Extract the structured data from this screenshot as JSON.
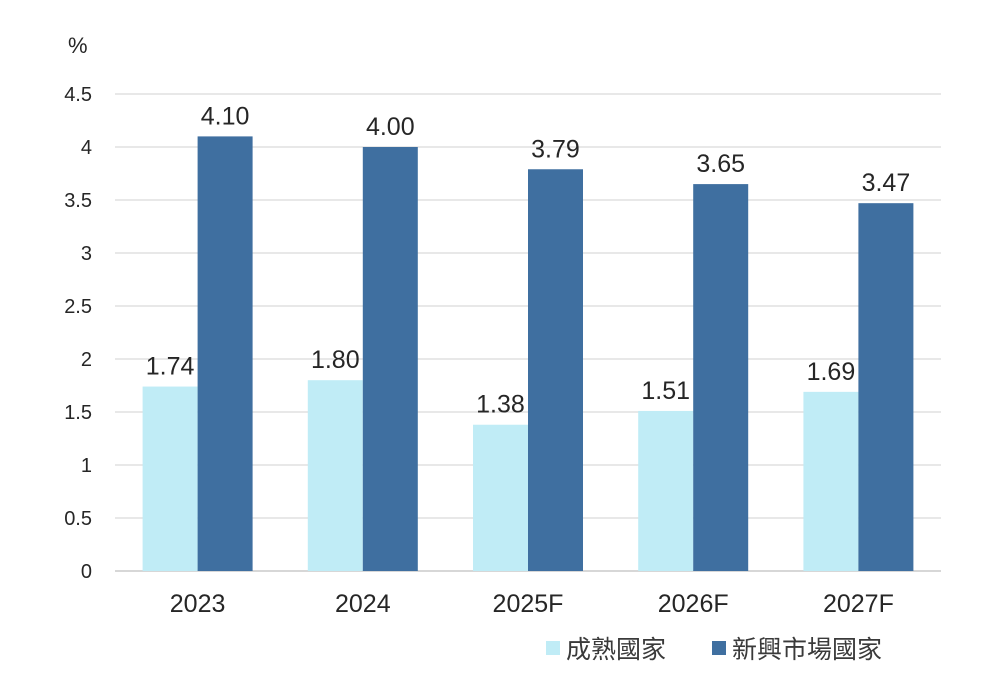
{
  "chart_data": {
    "type": "bar",
    "ylabel": "%",
    "ylim": [
      0,
      4.5
    ],
    "ytick_step": 0.5,
    "yticks": [
      "0",
      "0.5",
      "1",
      "1.5",
      "2",
      "2.5",
      "3",
      "3.5",
      "4",
      "4.5"
    ],
    "grid": true,
    "legend_position": "bottom-right",
    "categories": [
      "2023",
      "2024",
      "2025F",
      "2026F",
      "2027F"
    ],
    "series": [
      {
        "name": "成熟國家",
        "color": "#c0ecf6",
        "values": [
          1.74,
          1.8,
          1.38,
          1.51,
          1.69
        ],
        "labels": [
          "1.74",
          "1.80",
          "1.38",
          "1.51",
          "1.69"
        ]
      },
      {
        "name": "新興市場國家",
        "color": "#3f6fa0",
        "values": [
          4.1,
          4.0,
          3.79,
          3.65,
          3.47
        ],
        "labels": [
          "4.10",
          "4.00",
          "3.79",
          "3.65",
          "3.47"
        ]
      }
    ]
  }
}
